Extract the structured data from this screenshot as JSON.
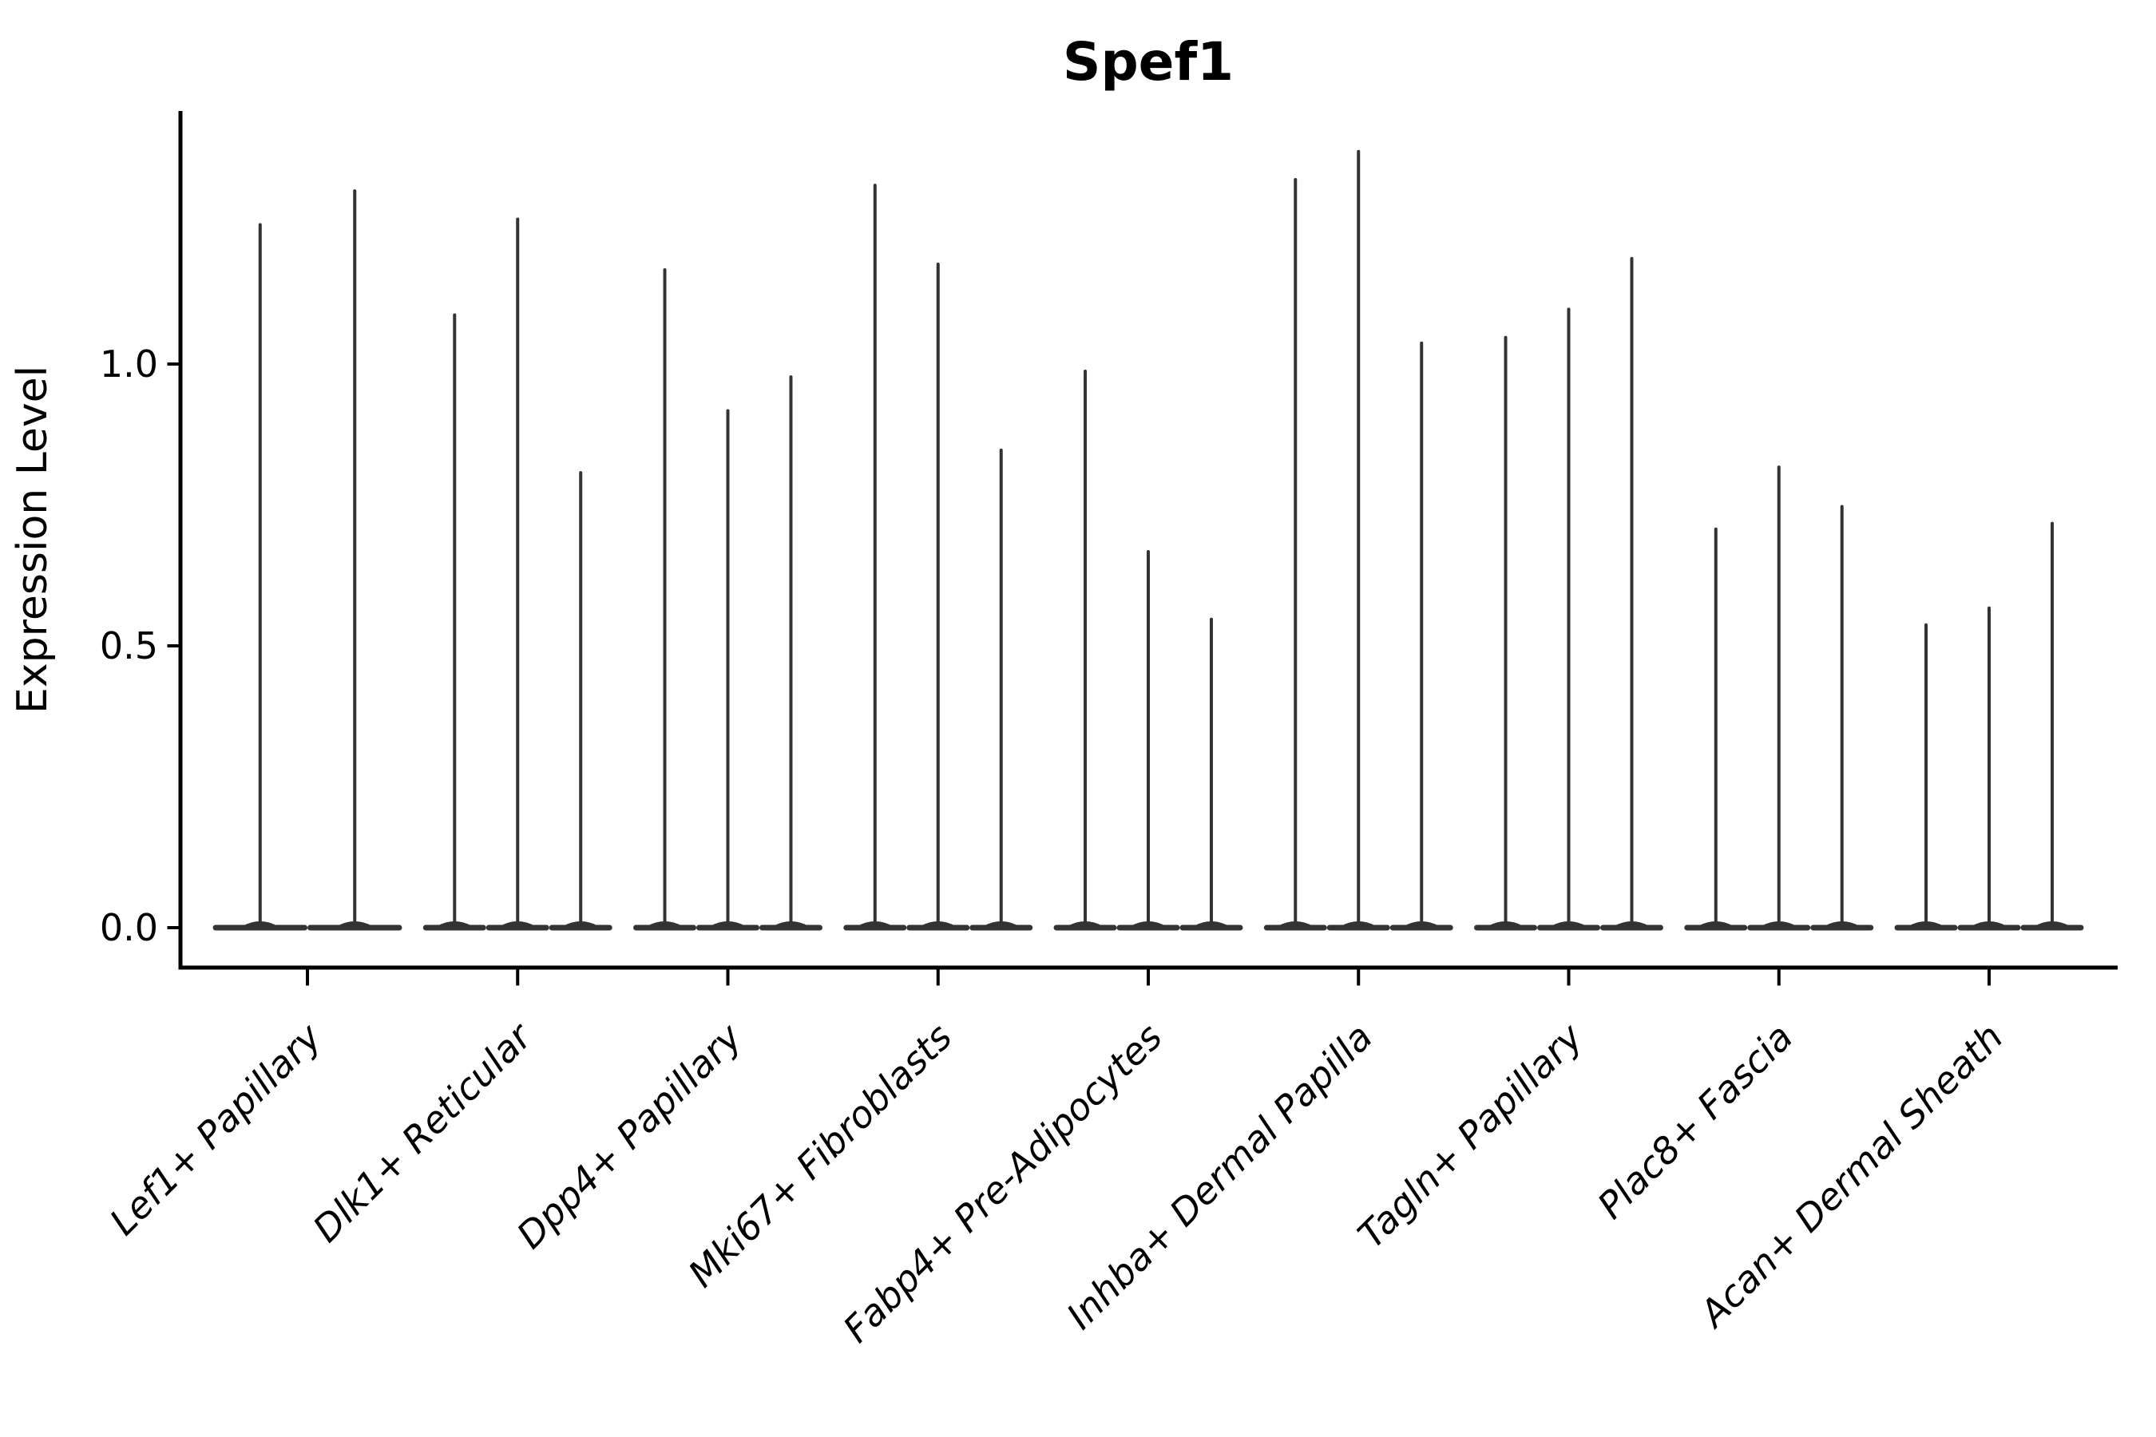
{
  "chart_data": {
    "type": "violin",
    "title": "Spef1",
    "xlabel": "",
    "ylabel": "Expression Level",
    "ytick_labels": [
      "0.0",
      "0.5",
      "1.0"
    ],
    "ytick_values": [
      0.0,
      0.5,
      1.0
    ],
    "ylim": [
      -0.07,
      1.45
    ],
    "grid": false,
    "legend": null,
    "background_color": "#ffffff",
    "violin_color": "#333333",
    "spine_color": "#000000",
    "categories": [
      "Lef1+ Papillary",
      "Dlk1+ Reticular",
      "Dpp4+ Papillary",
      "Mki67+ Fibroblasts",
      "Fabp4+ Pre-Adipocytes",
      "Inhba+ Dermal Papilla",
      "Tagln+ Papillary",
      "Plac8+ Fascia",
      "Acan+ Dermal Sheath"
    ],
    "groups": [
      {
        "category": "Lef1+ Papillary",
        "violin_offsets": [
          -0.225,
          0.225
        ],
        "violin_halfwidth": 0.225,
        "max_values": [
          1.25,
          1.31
        ],
        "min_value": 0.0
      },
      {
        "category": "Dlk1+ Reticular",
        "violin_offsets": [
          -0.3,
          0.0,
          0.3
        ],
        "violin_halfwidth": 0.15,
        "max_values": [
          1.09,
          1.26,
          0.81
        ],
        "min_value": 0.0
      },
      {
        "category": "Dpp4+ Papillary",
        "violin_offsets": [
          -0.3,
          0.0,
          0.3
        ],
        "violin_halfwidth": 0.15,
        "max_values": [
          1.17,
          0.92,
          0.98
        ],
        "min_value": 0.0
      },
      {
        "category": "Mki67+ Fibroblasts",
        "violin_offsets": [
          -0.3,
          0.0,
          0.3
        ],
        "violin_halfwidth": 0.15,
        "max_values": [
          1.32,
          1.18,
          0.85
        ],
        "min_value": 0.0
      },
      {
        "category": "Fabp4+ Pre-Adipocytes",
        "violin_offsets": [
          -0.3,
          0.0,
          0.3
        ],
        "violin_halfwidth": 0.15,
        "max_values": [
          0.99,
          0.67,
          0.55
        ],
        "min_value": 0.0
      },
      {
        "category": "Inhba+ Dermal Papilla",
        "violin_offsets": [
          -0.3,
          0.0,
          0.3
        ],
        "violin_halfwidth": 0.15,
        "max_values": [
          1.33,
          1.38,
          1.04
        ],
        "min_value": 0.0
      },
      {
        "category": "Tagln+ Papillary",
        "violin_offsets": [
          -0.3,
          0.0,
          0.3
        ],
        "violin_halfwidth": 0.15,
        "max_values": [
          1.05,
          1.1,
          1.19
        ],
        "min_value": 0.0
      },
      {
        "category": "Plac8+ Fascia",
        "violin_offsets": [
          -0.3,
          0.0,
          0.3
        ],
        "violin_halfwidth": 0.15,
        "max_values": [
          0.71,
          0.82,
          0.75
        ],
        "min_value": 0.0
      },
      {
        "category": "Acan+ Dermal Sheath",
        "violin_offsets": [
          -0.3,
          0.0,
          0.3
        ],
        "violin_halfwidth": 0.15,
        "max_values": [
          0.54,
          0.57,
          0.72
        ],
        "min_value": 0.0
      }
    ]
  }
}
